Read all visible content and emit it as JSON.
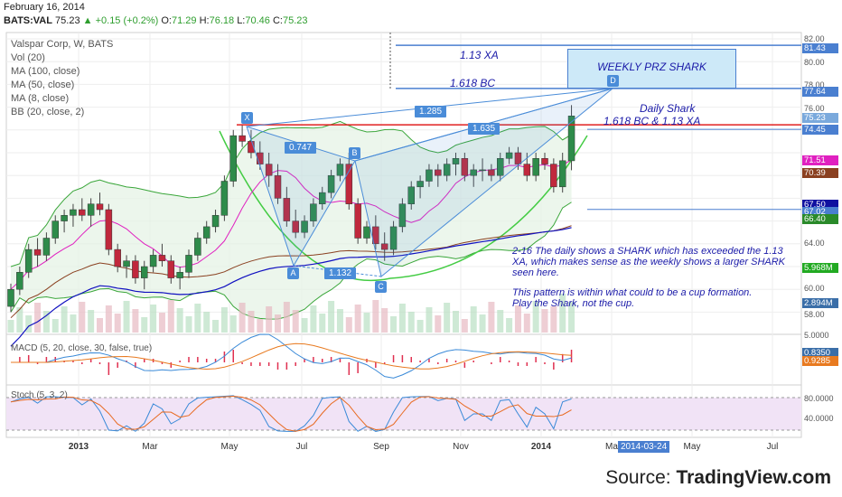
{
  "header": {
    "date": "February 16, 2014",
    "symbol": "BATS:VAL",
    "last": "75.23",
    "change_arrow": "▲",
    "change": "+0.15 (+0.2%)",
    "open_label": "O:",
    "open": "71.29",
    "high_label": "H:",
    "high": "76.18",
    "low_label": "L:",
    "low": "70.46",
    "close_label": "C:",
    "close": "75.23"
  },
  "legend": {
    "title": "Valspar Corp, W, BATS",
    "items": [
      "Vol (20)",
      "MA (100, close)",
      "MA (50, close)",
      "MA (8, close)",
      "BB (20, close, 2)"
    ]
  },
  "indicators": {
    "macd_label": "MACD (5, 20, close, 30, false, true)",
    "stoch_label": "Stoch (5, 3, 2)"
  },
  "annotations": {
    "xa_label": "1.13 XA",
    "bc_label": "1.618 BC",
    "prz_box": "WEEKLY PRZ SHARK",
    "daily_title": "Daily Shark",
    "daily_sub": "1.618 BC & 1.13 XA",
    "note1": "2-16  The daily shows a SHARK which has exceeded the 1.13 XA, which makes sense as the weekly shows a larger SHARK seen here.",
    "note2": "This pattern is within what could to be a cup formation.  Play the Shark, not the cup."
  },
  "pattern_points": {
    "X": "X",
    "A": "A",
    "B": "B",
    "C": "C",
    "D": "D"
  },
  "ratios": {
    "r1": "1.285",
    "r2": "0.747",
    "r3": "1.635",
    "r4": "1.132"
  },
  "price_axis": {
    "ticks": [
      "82.00",
      "80.00",
      "78.00",
      "76.00",
      "74.00",
      "72.00",
      "70.00",
      "68.00",
      "66.00",
      "64.00",
      "62.00",
      "60.00",
      "58.00"
    ],
    "tags": [
      {
        "value": "81.43",
        "color": "#4a7fd0"
      },
      {
        "value": "77.64",
        "color": "#4a7fd0"
      },
      {
        "value": "75.23",
        "color": "#7aa9dc"
      },
      {
        "value": "74.45",
        "color": "#4a7fd0"
      },
      {
        "value": "71.51",
        "color": "#e020c0"
      },
      {
        "value": "70.39",
        "color": "#8a4020"
      },
      {
        "value": "67.50",
        "color": "#1010a0"
      },
      {
        "value": "67.02",
        "color": "#4a7fd0"
      },
      {
        "value": "66.40",
        "color": "#2a8a2a"
      },
      {
        "value": "5.968M",
        "color": "#22aa22"
      },
      {
        "value": "2.894M",
        "color": "#3a6ea8"
      }
    ],
    "macd_ticks": [
      "5.0000",
      "0.0000"
    ],
    "macd_tags": [
      {
        "value": "0.9285",
        "color": "#e87a20"
      },
      {
        "value": "0.8350",
        "color": "#3a6ea8"
      }
    ],
    "stoch_ticks": [
      "80.0000",
      "40.0000"
    ]
  },
  "time_axis": {
    "labels": [
      "2013",
      "Mar",
      "May",
      "Jul",
      "Sep",
      "Nov",
      "2014",
      "Ma",
      "May",
      "Jul"
    ],
    "crosshair_date": "2014-03-24"
  },
  "source": {
    "prefix": "Source: ",
    "brand": "TradingView.com"
  },
  "chart_data": {
    "type": "candlestick",
    "title": "Valspar Corp, W, BATS",
    "ylim": [
      56,
      83
    ],
    "candles": [
      [
        58.5,
        60.5,
        58,
        60
      ],
      [
        60,
        62,
        59.5,
        61.5
      ],
      [
        61.5,
        64,
        61,
        63.5
      ],
      [
        63.5,
        64.5,
        62,
        63
      ],
      [
        63,
        65,
        62.5,
        64.5
      ],
      [
        64.5,
        66.5,
        64,
        66
      ],
      [
        66,
        67,
        65,
        66.5
      ],
      [
        66.5,
        67.5,
        65.5,
        67
      ],
      [
        67,
        68,
        66,
        66.5
      ],
      [
        66.5,
        68,
        65.5,
        67.5
      ],
      [
        67.5,
        68.5,
        66.5,
        67
      ],
      [
        67,
        67.5,
        63,
        63.5
      ],
      [
        63.5,
        64,
        61.5,
        62
      ],
      [
        62,
        63,
        61,
        62.5
      ],
      [
        62.5,
        63,
        60.5,
        61
      ],
      [
        61,
        62.5,
        60,
        62
      ],
      [
        62,
        63.5,
        61.5,
        63
      ],
      [
        63,
        64,
        62,
        62.5
      ],
      [
        62.5,
        63,
        60.5,
        61
      ],
      [
        61,
        62,
        60,
        61.5
      ],
      [
        61.5,
        63.5,
        61,
        63
      ],
      [
        63,
        65,
        62.5,
        64.5
      ],
      [
        64.5,
        66,
        64,
        65.5
      ],
      [
        65.5,
        67,
        65,
        66.5
      ],
      [
        66.5,
        70,
        66,
        69.5
      ],
      [
        69.5,
        74,
        69,
        73.5
      ],
      [
        73.5,
        74.5,
        72.5,
        73
      ],
      [
        73,
        74,
        71.5,
        72
      ],
      [
        72,
        73,
        70.5,
        71
      ],
      [
        71,
        72,
        69,
        70
      ],
      [
        70,
        71,
        67.5,
        68
      ],
      [
        68,
        69,
        65.5,
        66
      ],
      [
        66,
        67,
        64.5,
        65
      ],
      [
        65,
        66.5,
        64.5,
        66
      ],
      [
        66,
        68,
        65.5,
        67.5
      ],
      [
        67.5,
        69,
        67,
        68.5
      ],
      [
        68.5,
        70.5,
        68,
        70
      ],
      [
        70,
        71.5,
        69.5,
        71
      ],
      [
        71,
        72,
        67,
        67.5
      ],
      [
        67.5,
        68,
        64,
        64.5
      ],
      [
        64.5,
        66,
        64,
        65.5
      ],
      [
        65.5,
        66.5,
        63.5,
        64
      ],
      [
        64,
        65,
        62.5,
        63.5
      ],
      [
        63.5,
        66,
        63,
        65.5
      ],
      [
        65.5,
        68,
        65,
        67.5
      ],
      [
        67.5,
        69.5,
        67,
        69
      ],
      [
        69,
        70,
        68,
        69.5
      ],
      [
        69.5,
        71,
        69,
        70.5
      ],
      [
        70.5,
        71,
        69,
        70
      ],
      [
        70,
        71.5,
        69.5,
        71
      ],
      [
        71,
        72,
        70,
        71.5
      ],
      [
        71.5,
        72,
        69.5,
        70
      ],
      [
        70,
        71,
        69,
        70.5
      ],
      [
        70.5,
        71.5,
        69.5,
        70.5
      ],
      [
        70.5,
        71,
        69.5,
        70
      ],
      [
        70,
        72,
        69.5,
        71.5
      ],
      [
        71.5,
        72.5,
        71,
        72
      ],
      [
        72,
        72.5,
        70.5,
        71
      ],
      [
        71,
        72,
        69.5,
        70
      ],
      [
        70,
        72,
        69.5,
        71.5
      ],
      [
        71.5,
        72,
        70.5,
        71
      ],
      [
        71,
        71.5,
        68.5,
        69
      ],
      [
        69,
        72,
        68.5,
        71.3
      ],
      [
        71.29,
        76.18,
        70.46,
        75.23
      ]
    ],
    "levels": [
      {
        "label": "1.13 XA",
        "value": 81.43
      },
      {
        "label": "1.618 BC",
        "value": 77.64
      },
      {
        "value": 74.45
      },
      {
        "value": 67.02
      }
    ],
    "pattern": {
      "X": 74,
      "A": 62.3,
      "B": 70.5,
      "C": 61.3,
      "D": 77.64
    }
  }
}
